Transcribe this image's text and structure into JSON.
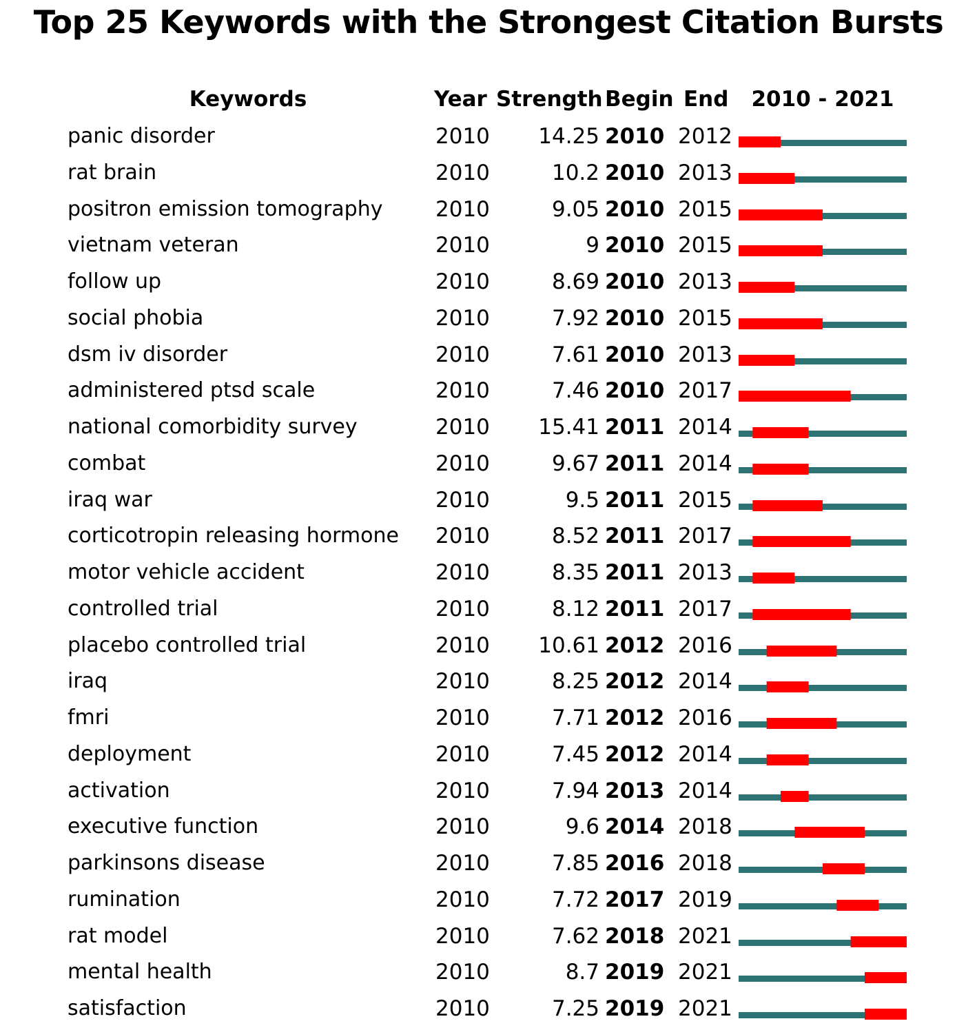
{
  "title": "Top 25 Keywords with the Strongest Citation Bursts",
  "headers": {
    "keywords": "Keywords",
    "year": "Year",
    "strength": "Strength",
    "begin": "Begin",
    "end": "End",
    "range": "2010 - 2021"
  },
  "colors": {
    "burst": "#ff0000",
    "baseline": "#2e7373"
  },
  "chart_data": {
    "type": "table",
    "title": "Top 25 Keywords with the Strongest Citation Bursts",
    "range_start": 2010,
    "range_end": 2021,
    "columns": [
      "Keywords",
      "Year",
      "Strength",
      "Begin",
      "End",
      "2010 - 2021"
    ],
    "rows": [
      {
        "keyword": "panic disorder",
        "year": "2010",
        "strength": "14.25",
        "begin": "2010",
        "end": "2012"
      },
      {
        "keyword": "rat brain",
        "year": "2010",
        "strength": "10.2",
        "begin": "2010",
        "end": "2013"
      },
      {
        "keyword": "positron emission tomography",
        "year": "2010",
        "strength": "9.05",
        "begin": "2010",
        "end": "2015"
      },
      {
        "keyword": "vietnam veteran",
        "year": "2010",
        "strength": "9",
        "begin": "2010",
        "end": "2015"
      },
      {
        "keyword": "follow up",
        "year": "2010",
        "strength": "8.69",
        "begin": "2010",
        "end": "2013"
      },
      {
        "keyword": "social phobia",
        "year": "2010",
        "strength": "7.92",
        "begin": "2010",
        "end": "2015"
      },
      {
        "keyword": "dsm iv disorder",
        "year": "2010",
        "strength": "7.61",
        "begin": "2010",
        "end": "2013"
      },
      {
        "keyword": "administered ptsd scale",
        "year": "2010",
        "strength": "7.46",
        "begin": "2010",
        "end": "2017"
      },
      {
        "keyword": "national comorbidity survey",
        "year": "2010",
        "strength": "15.41",
        "begin": "2011",
        "end": "2014"
      },
      {
        "keyword": "combat",
        "year": "2010",
        "strength": "9.67",
        "begin": "2011",
        "end": "2014"
      },
      {
        "keyword": "iraq war",
        "year": "2010",
        "strength": "9.5",
        "begin": "2011",
        "end": "2015"
      },
      {
        "keyword": "corticotropin releasing hormone",
        "year": "2010",
        "strength": "8.52",
        "begin": "2011",
        "end": "2017"
      },
      {
        "keyword": "motor vehicle accident",
        "year": "2010",
        "strength": "8.35",
        "begin": "2011",
        "end": "2013"
      },
      {
        "keyword": "controlled trial",
        "year": "2010",
        "strength": "8.12",
        "begin": "2011",
        "end": "2017"
      },
      {
        "keyword": "placebo controlled trial",
        "year": "2010",
        "strength": "10.61",
        "begin": "2012",
        "end": "2016"
      },
      {
        "keyword": "iraq",
        "year": "2010",
        "strength": "8.25",
        "begin": "2012",
        "end": "2014"
      },
      {
        "keyword": "fmri",
        "year": "2010",
        "strength": "7.71",
        "begin": "2012",
        "end": "2016"
      },
      {
        "keyword": "deployment",
        "year": "2010",
        "strength": "7.45",
        "begin": "2012",
        "end": "2014"
      },
      {
        "keyword": "activation",
        "year": "2010",
        "strength": "7.94",
        "begin": "2013",
        "end": "2014"
      },
      {
        "keyword": "executive function",
        "year": "2010",
        "strength": "9.6",
        "begin": "2014",
        "end": "2018"
      },
      {
        "keyword": "parkinsons disease",
        "year": "2010",
        "strength": "7.85",
        "begin": "2016",
        "end": "2018"
      },
      {
        "keyword": "rumination",
        "year": "2010",
        "strength": "7.72",
        "begin": "2017",
        "end": "2019"
      },
      {
        "keyword": "rat model",
        "year": "2010",
        "strength": "7.62",
        "begin": "2018",
        "end": "2021"
      },
      {
        "keyword": "mental health",
        "year": "2010",
        "strength": "8.7",
        "begin": "2019",
        "end": "2021"
      },
      {
        "keyword": "satisfaction",
        "year": "2010",
        "strength": "7.25",
        "begin": "2019",
        "end": "2021"
      }
    ]
  }
}
